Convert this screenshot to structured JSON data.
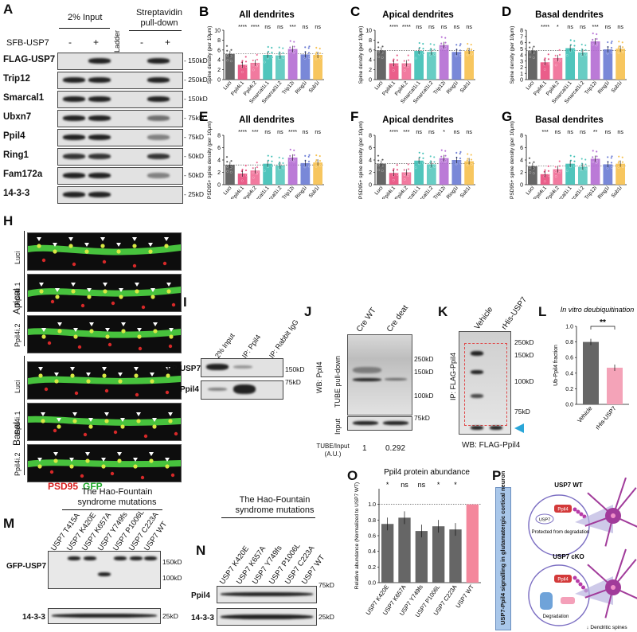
{
  "panels": {
    "A": "A",
    "B": "B",
    "C": "C",
    "D": "D",
    "E": "E",
    "F": "F",
    "G": "G",
    "H": "H",
    "I": "I",
    "J": "J",
    "K": "K",
    "L": "L",
    "M": "M",
    "N": "N",
    "O": "O",
    "P": "P"
  },
  "panelA": {
    "input_header": "2% Input",
    "pulldown_header": "Streptavidin pull-down",
    "ladder": "Ladder",
    "sfb_label": "SFB-USP7",
    "signs": [
      "-",
      "+",
      "-",
      "+"
    ],
    "rows": [
      {
        "name": "FLAG-USP7",
        "mw": "150kD"
      },
      {
        "name": "Trip12",
        "mw": "250kD"
      },
      {
        "name": "Smarcal1",
        "mw": "150kD"
      },
      {
        "name": "Ubxn7",
        "mw": "75kD"
      },
      {
        "name": "Ppil4",
        "mw": "75kD"
      },
      {
        "name": "Ring1",
        "mw": "50kD"
      },
      {
        "name": "Fam172a",
        "mw": "50kD"
      },
      {
        "name": "14-3-3",
        "mw": "25kD"
      }
    ]
  },
  "spine_charts": {
    "categories": [
      "Luci",
      "Ppil4i.1",
      "Ppil4i.2",
      "Smarcal1i.1",
      "Smarcal1i.2",
      "Trip12i",
      "Ring1i",
      "Sub1i"
    ],
    "colors": [
      "#555555",
      "#e84c7d",
      "#f06c95",
      "#3dbfb5",
      "#58c8be",
      "#b46bd3",
      "#6a7bd4",
      "#f6c04e"
    ],
    "top_ylabel": "Spine density (per 10 μm)",
    "bottom_ylabel": "PSD95+ spine density (per 10 μm)"
  },
  "chart_data": [
    {
      "id": "B",
      "type": "bar",
      "title": "All dendrites",
      "ylabel": "Spine density (per 10μm)",
      "ylim": [
        0,
        10
      ],
      "yticks": [
        0,
        2,
        4,
        6,
        8,
        10
      ],
      "values": [
        5.2,
        3.0,
        3.4,
        5.0,
        4.9,
        6.2,
        5.1,
        5.0
      ],
      "sig": [
        "",
        "****",
        "****",
        "ns",
        "ns",
        "***",
        "ns",
        "ns"
      ]
    },
    {
      "id": "C",
      "type": "bar",
      "title": "Apical dendrites",
      "ylabel": "Spine density (per 10μm)",
      "ylim": [
        0,
        10
      ],
      "yticks": [
        0,
        2,
        4,
        6,
        8,
        10
      ],
      "values": [
        5.9,
        3.3,
        3.3,
        5.8,
        5.6,
        7.0,
        5.6,
        5.8
      ],
      "sig": [
        "",
        "****",
        "****",
        "ns",
        "ns",
        "ns",
        "ns",
        "ns"
      ]
    },
    {
      "id": "D",
      "type": "bar",
      "title": "Basal dendrites",
      "ylabel": "Spine density (per 10μm)",
      "ylim": [
        0,
        8
      ],
      "yticks": [
        0,
        1,
        2,
        3,
        4,
        5,
        6,
        7,
        8
      ],
      "values": [
        4.7,
        2.8,
        3.5,
        5.1,
        4.4,
        6.2,
        4.9,
        5.0
      ],
      "sig": [
        "",
        "****",
        "*",
        "ns",
        "ns",
        "***",
        "ns",
        "ns"
      ]
    },
    {
      "id": "E",
      "type": "bar",
      "title": "All dendrites",
      "ylabel": "PSD95+ spine density (per 10μm)",
      "ylim": [
        0,
        8
      ],
      "yticks": [
        0,
        2,
        4,
        6,
        8
      ],
      "values": [
        3.2,
        1.8,
        2.3,
        3.4,
        3.1,
        4.4,
        3.5,
        3.6
      ],
      "sig": [
        "",
        "****",
        "***",
        "ns",
        "ns",
        "****",
        "ns",
        "ns"
      ]
    },
    {
      "id": "F",
      "type": "bar",
      "title": "Apical dendrites",
      "ylabel": "PSD95+ spine density (per 10μm)",
      "ylim": [
        0,
        8
      ],
      "yticks": [
        0,
        2,
        4,
        6,
        8
      ],
      "values": [
        3.4,
        1.9,
        2.0,
        3.9,
        3.3,
        4.3,
        4.0,
        3.8
      ],
      "sig": [
        "",
        "****",
        "***",
        "ns",
        "ns",
        "*",
        "ns",
        "ns"
      ]
    },
    {
      "id": "G",
      "type": "bar",
      "title": "Basal dendrites",
      "ylabel": "PSD95+ spine density (per 10μm)",
      "ylim": [
        0,
        8
      ],
      "yticks": [
        0,
        2,
        4,
        6,
        8
      ],
      "values": [
        3.0,
        1.7,
        2.5,
        3.4,
        2.9,
        4.2,
        3.3,
        3.4
      ],
      "sig": [
        "",
        "***",
        "ns",
        "ns",
        "ns",
        "**",
        "ns",
        "ns"
      ]
    },
    {
      "id": "L",
      "type": "bar",
      "title": "In vitro deubiquitination",
      "ylabel": "Ub-Ppil4 fraction",
      "ylim": [
        0,
        1.0
      ],
      "yticks": [
        0.0,
        0.2,
        0.4,
        0.6,
        0.8,
        1.0
      ],
      "categories": [
        "Vehicle",
        "rHis-USP7"
      ],
      "values": [
        0.8,
        0.47
      ],
      "colors": [
        "#666666",
        "#f4a3b8"
      ],
      "sig": "**"
    },
    {
      "id": "O",
      "type": "bar",
      "title": "Ppil4 protein abundance",
      "ylabel": "Relative abundance (Normalized to USP7 WT)",
      "ylim": [
        0,
        1.2
      ],
      "yticks": [
        0,
        0.2,
        0.4,
        0.6,
        0.8,
        1.0
      ],
      "categories": [
        "USP7 K420E",
        "USP7 K657A",
        "USP7 Y749fs",
        "USP7 P1006L",
        "USP7 C223A",
        "USP7 WT"
      ],
      "values": [
        0.75,
        0.83,
        0.66,
        0.72,
        0.68,
        1.0
      ],
      "colors": [
        "#666666",
        "#666666",
        "#666666",
        "#666666",
        "#666666",
        "#f4879c"
      ],
      "sig": [
        "*",
        "ns",
        "ns",
        "*",
        "*",
        ""
      ]
    }
  ],
  "panelH": {
    "apical": "Apical",
    "basal": "Basal",
    "rows": [
      "Luci",
      "Ppil4i.1",
      "Ppil4i.2",
      "Luci",
      "Ppil4i.1",
      "Ppil4i.2"
    ],
    "psd95": "PSD95",
    "gfp": "GFP"
  },
  "panelI": {
    "lanes": [
      "2% Input",
      "IP: Ppil4",
      "IP: Rabbit IgG"
    ],
    "rows": [
      "GFP-USP7",
      "Ppil4"
    ],
    "mw": [
      "150kD",
      "75kD"
    ]
  },
  "panelJ": {
    "lanes": [
      "Cre WT",
      "Cre deat"
    ],
    "wb": "WB: Ppil4",
    "tube": "TUBE pull-down",
    "input": "Input",
    "mw": [
      "250kD",
      "150kD",
      "100kD",
      "75kD"
    ],
    "ratio_label": "TUBE/Input (A.U.)",
    "ratios": [
      "1",
      "0.292"
    ]
  },
  "panelK": {
    "lanes": [
      "Vehicle",
      "rHis-USP7"
    ],
    "ip": "IP: FLAG-Ppil4",
    "wb": "WB: FLAG-Ppil4",
    "mw": [
      "250kD",
      "150kD",
      "100kD",
      "75kD"
    ]
  },
  "panelM": {
    "header": "The Hao-Fountain syndrome mutations",
    "lanes": [
      "USP7 T415A",
      "USP7 K420E",
      "USP7 K657A",
      "USP7 Y749fs",
      "USP7 P1006L",
      "USP7 C223A",
      "USP7 WT"
    ],
    "rows": [
      "GFP-USP7",
      "14-3-3"
    ],
    "mw": [
      "150kD",
      "100kD",
      "25kD"
    ]
  },
  "panelN": {
    "header": "The Hao-Fountain syndrome mutations",
    "lanes": [
      "USP7 K420E",
      "USP7 K657A",
      "USP7 Y749fs",
      "USP7 P1006L",
      "USP7 C223A",
      "USP7 WT"
    ],
    "rows": [
      "Ppil4",
      "14-3-3"
    ],
    "mw": [
      "75kD",
      "25kD"
    ]
  },
  "panelP": {
    "side": "USP7-Ppil4 signalling in glutamatergic cortical neuron",
    "wt": "USP7 WT",
    "cko": "USP7 cKO",
    "ppil4": "Ppil4",
    "usp7": "USP7",
    "protected": "Protected from degradation",
    "degradation": "Degradation",
    "spines": "↓ Dendritic spines"
  }
}
